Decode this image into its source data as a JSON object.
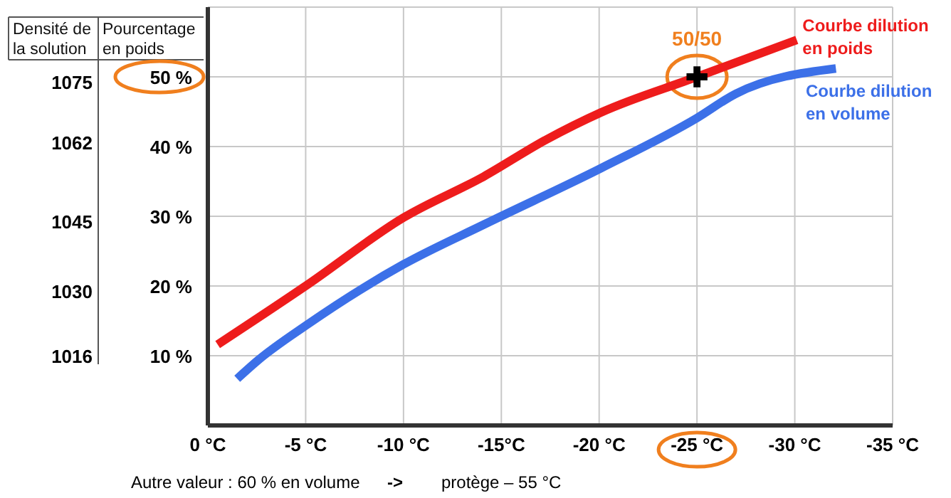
{
  "chart_data": {
    "type": "line",
    "ylabel": "Pourcentage en poids",
    "y2label": "Densité de la solution",
    "xlim": [
      0,
      -35
    ],
    "xticks": [
      {
        "value": 0,
        "label": "0 °C"
      },
      {
        "value": -5,
        "label": "-5 °C"
      },
      {
        "value": -10,
        "label": "-10 °C"
      },
      {
        "value": -15,
        "label": "-15°C"
      },
      {
        "value": -20,
        "label": "-20 °C"
      },
      {
        "value": -25,
        "label": "-25 °C"
      },
      {
        "value": -30,
        "label": "-30 °C"
      },
      {
        "value": -35,
        "label": "-35 °C"
      }
    ],
    "ylim": [
      0,
      60
    ],
    "yticks": [
      {
        "value": 10,
        "label": "10 %"
      },
      {
        "value": 20,
        "label": "20 %"
      },
      {
        "value": 30,
        "label": "30 %"
      },
      {
        "value": 40,
        "label": "40 %"
      },
      {
        "value": 50,
        "label": "50 %"
      }
    ],
    "y2lim": [
      1001,
      1091
    ],
    "y2ticks": [
      1016,
      1030,
      1045,
      1062,
      1075
    ],
    "grid": true,
    "legend": false,
    "line_style": "solid",
    "series": [
      {
        "name": "Courbe dilution en poids",
        "color": "#ee1c1c",
        "x": [
          -0.5,
          -5.1,
          -10,
          -14.1,
          -17.3,
          -20.1,
          -25,
          -30.1
        ],
        "values": [
          11.6,
          20.2,
          29.8,
          35.7,
          41,
          44.9,
          50,
          55.3
        ]
      },
      {
        "name": "Courbe dilution en volume",
        "color": "#3c70e8",
        "x": [
          -1.5,
          -2.5,
          -5.1,
          -10,
          -14.1,
          -20.1,
          -25,
          -27,
          -32.1
        ],
        "values": [
          6.7,
          9.2,
          14.5,
          23.1,
          28.8,
          36.9,
          44.1,
          47.6,
          51.2
        ]
      },
      {
        "type": "scatter",
        "marker": "cross",
        "color": "#000000",
        "x": [
          -25
        ],
        "values": [
          50
        ]
      }
    ],
    "annotations": [
      {
        "text": "50/50",
        "x": -25,
        "y": 50
      },
      "Autre valeur : 60 % en volume",
      "->",
      "protège – 55 °C"
    ]
  }
}
